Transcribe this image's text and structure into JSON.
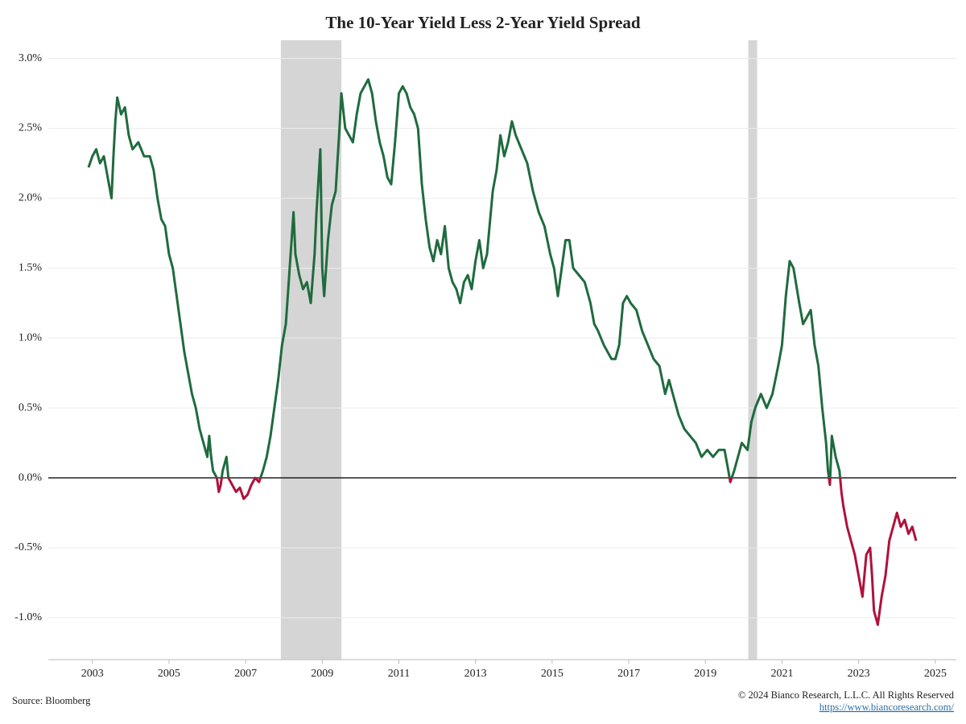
{
  "chart_data": {
    "type": "line",
    "title": "The 10-Year Yield Less 2-Year Yield Spread",
    "source": "Source: Bloomberg",
    "copyright": "© 2024 Bianco Research, L.L.C. All Rights Reserved",
    "url": "https://www.biancoresearch.com/",
    "positive_color": "#1f6b3e",
    "negative_color": "#b0113c",
    "shade_color": "#d5d5d5",
    "shaded_periods": [
      [
        2007.92,
        2009.5
      ],
      [
        2020.12,
        2020.35
      ]
    ],
    "xlim": [
      2001.85,
      2025.55
    ],
    "ylim": [
      -1.3,
      3.13
    ],
    "xticks": [
      2003,
      2005,
      2007,
      2009,
      2011,
      2013,
      2015,
      2017,
      2019,
      2021,
      2023,
      2025
    ],
    "yticks": [
      {
        "value": -1,
        "label": "-1.0%"
      },
      {
        "value": -0.5,
        "label": "-0.5%"
      },
      {
        "value": 0,
        "label": "0.0%"
      },
      {
        "value": 0.5,
        "label": "0.5%"
      },
      {
        "value": 1,
        "label": "1.0%"
      },
      {
        "value": 1.5,
        "label": "1.5%"
      },
      {
        "value": 2,
        "label": "2.0%"
      },
      {
        "value": 2.5,
        "label": "2.5%"
      },
      {
        "value": 3,
        "label": "3.0%"
      }
    ],
    "x": [
      2002.9,
      2003.0,
      2003.1,
      2003.2,
      2003.3,
      2003.4,
      2003.5,
      2003.55,
      2003.6,
      2003.65,
      2003.75,
      2003.85,
      2003.95,
      2004.05,
      2004.2,
      2004.35,
      2004.5,
      2004.6,
      2004.7,
      2004.8,
      2004.9,
      2005.0,
      2005.1,
      2005.2,
      2005.3,
      2005.4,
      2005.5,
      2005.6,
      2005.7,
      2005.8,
      2005.9,
      2006.0,
      2006.05,
      2006.1,
      2006.15,
      2006.25,
      2006.3,
      2006.35,
      2006.4,
      2006.5,
      2006.55,
      2006.65,
      2006.75,
      2006.85,
      2006.95,
      2007.05,
      2007.15,
      2007.25,
      2007.35,
      2007.45,
      2007.55,
      2007.65,
      2007.75,
      2007.85,
      2007.95,
      2008.05,
      2008.15,
      2008.25,
      2008.3,
      2008.4,
      2008.5,
      2008.6,
      2008.7,
      2008.8,
      2008.85,
      2008.95,
      2009.0,
      2009.05,
      2009.15,
      2009.25,
      2009.35,
      2009.45,
      2009.5,
      2009.6,
      2009.7,
      2009.8,
      2009.9,
      2010.0,
      2010.1,
      2010.2,
      2010.3,
      2010.4,
      2010.5,
      2010.6,
      2010.7,
      2010.8,
      2010.9,
      2011.0,
      2011.1,
      2011.2,
      2011.3,
      2011.4,
      2011.5,
      2011.6,
      2011.7,
      2011.8,
      2011.9,
      2012.0,
      2012.1,
      2012.2,
      2012.3,
      2012.4,
      2012.5,
      2012.6,
      2012.7,
      2012.8,
      2012.9,
      2013.0,
      2013.1,
      2013.2,
      2013.3,
      2013.45,
      2013.55,
      2013.65,
      2013.75,
      2013.85,
      2013.95,
      2014.05,
      2014.2,
      2014.35,
      2014.5,
      2014.65,
      2014.8,
      2014.95,
      2015.05,
      2015.15,
      2015.25,
      2015.35,
      2015.45,
      2015.55,
      2015.7,
      2015.85,
      2016.0,
      2016.1,
      2016.2,
      2016.35,
      2016.45,
      2016.55,
      2016.65,
      2016.75,
      2016.85,
      2016.95,
      2017.05,
      2017.2,
      2017.35,
      2017.5,
      2017.65,
      2017.8,
      2017.95,
      2018.05,
      2018.15,
      2018.3,
      2018.45,
      2018.6,
      2018.75,
      2018.9,
      2019.05,
      2019.2,
      2019.35,
      2019.5,
      2019.6,
      2019.65,
      2019.75,
      2019.85,
      2019.95,
      2020.1,
      2020.2,
      2020.3,
      2020.45,
      2020.6,
      2020.75,
      2020.9,
      2021.0,
      2021.1,
      2021.2,
      2021.3,
      2021.45,
      2021.55,
      2021.65,
      2021.75,
      2021.85,
      2021.95,
      2022.05,
      2022.15,
      2022.2,
      2022.25,
      2022.3,
      2022.4,
      2022.5,
      2022.55,
      2022.6,
      2022.7,
      2022.8,
      2022.9,
      2023.0,
      2023.1,
      2023.2,
      2023.3,
      2023.35,
      2023.4,
      2023.5,
      2023.6,
      2023.7,
      2023.8,
      2023.9,
      2024.0,
      2024.1,
      2024.2,
      2024.3,
      2024.4,
      2024.5
    ],
    "values": [
      2.22,
      2.3,
      2.35,
      2.25,
      2.3,
      2.15,
      2.0,
      2.3,
      2.55,
      2.72,
      2.6,
      2.65,
      2.45,
      2.35,
      2.4,
      2.3,
      2.3,
      2.2,
      2.0,
      1.85,
      1.8,
      1.6,
      1.5,
      1.3,
      1.1,
      0.9,
      0.75,
      0.6,
      0.5,
      0.35,
      0.25,
      0.15,
      0.3,
      0.15,
      0.05,
      0.0,
      -0.1,
      -0.05,
      0.05,
      0.15,
      0.0,
      -0.05,
      -0.1,
      -0.07,
      -0.15,
      -0.12,
      -0.05,
      0.0,
      -0.03,
      0.05,
      0.15,
      0.3,
      0.5,
      0.7,
      0.95,
      1.1,
      1.5,
      1.9,
      1.6,
      1.45,
      1.35,
      1.4,
      1.25,
      1.6,
      1.9,
      2.35,
      1.5,
      1.3,
      1.7,
      1.95,
      2.05,
      2.5,
      2.75,
      2.5,
      2.45,
      2.4,
      2.6,
      2.75,
      2.8,
      2.85,
      2.75,
      2.55,
      2.4,
      2.3,
      2.15,
      2.1,
      2.4,
      2.75,
      2.8,
      2.75,
      2.65,
      2.6,
      2.5,
      2.1,
      1.85,
      1.65,
      1.55,
      1.7,
      1.6,
      1.8,
      1.5,
      1.4,
      1.35,
      1.25,
      1.4,
      1.45,
      1.35,
      1.55,
      1.7,
      1.5,
      1.6,
      2.05,
      2.2,
      2.45,
      2.3,
      2.4,
      2.55,
      2.45,
      2.35,
      2.25,
      2.05,
      1.9,
      1.8,
      1.6,
      1.5,
      1.3,
      1.5,
      1.7,
      1.7,
      1.5,
      1.45,
      1.4,
      1.25,
      1.1,
      1.05,
      0.95,
      0.9,
      0.85,
      0.85,
      0.95,
      1.25,
      1.3,
      1.25,
      1.2,
      1.05,
      0.95,
      0.85,
      0.8,
      0.6,
      0.7,
      0.6,
      0.45,
      0.35,
      0.3,
      0.25,
      0.15,
      0.2,
      0.15,
      0.2,
      0.2,
      0.05,
      -0.03,
      0.05,
      0.15,
      0.25,
      0.2,
      0.4,
      0.5,
      0.6,
      0.5,
      0.6,
      0.8,
      0.95,
      1.3,
      1.55,
      1.5,
      1.25,
      1.1,
      1.15,
      1.2,
      0.95,
      0.8,
      0.5,
      0.25,
      0.05,
      -0.05,
      0.3,
      0.15,
      0.05,
      -0.1,
      -0.2,
      -0.35,
      -0.45,
      -0.55,
      -0.7,
      -0.85,
      -0.55,
      -0.5,
      -0.7,
      -0.95,
      -1.05,
      -0.85,
      -0.7,
      -0.45,
      -0.35,
      -0.25,
      -0.35,
      -0.3,
      -0.4,
      -0.35,
      -0.45
    ]
  }
}
